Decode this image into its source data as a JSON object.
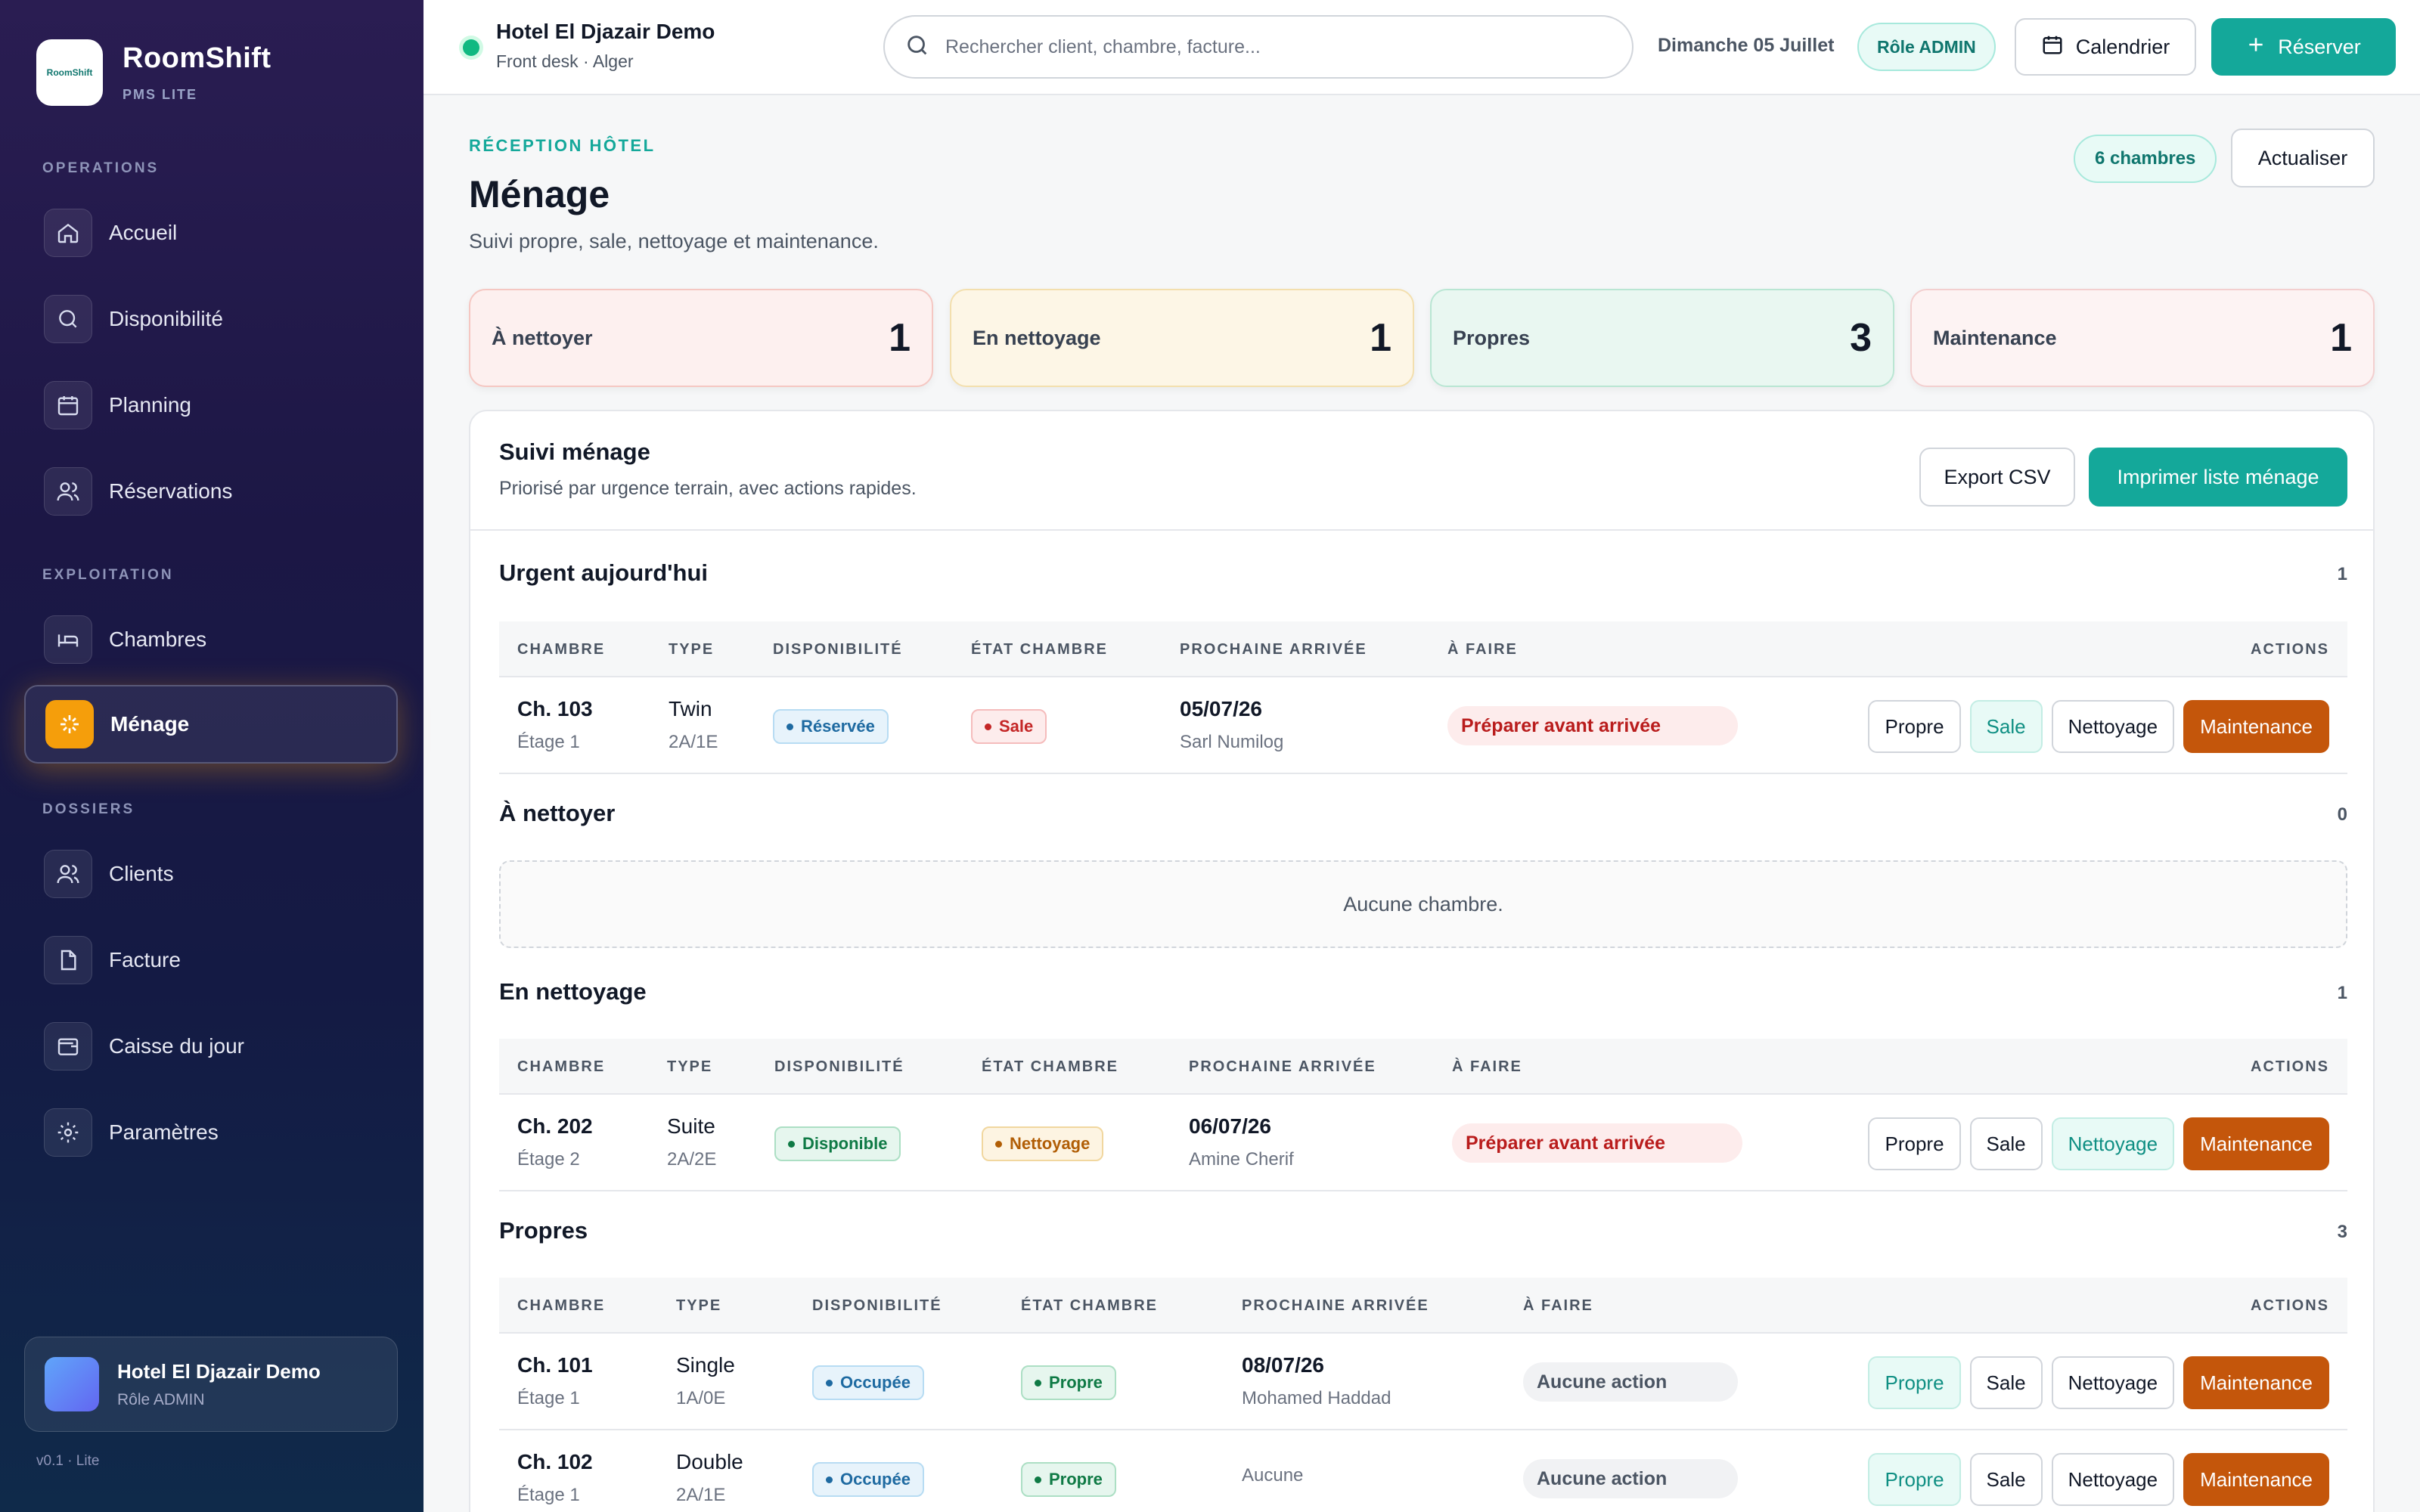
{
  "sidebar": {
    "brand": {
      "name": "RoomShift",
      "subtitle": "PMS LITE",
      "logo_text": "RoomShift"
    },
    "sections": {
      "operations": "OPERATIONS",
      "exploitation": "EXPLOITATION",
      "dossiers": "DOSSIERS"
    },
    "items": [
      {
        "label": "Accueil",
        "icon": "home-icon"
      },
      {
        "label": "Disponibilité",
        "icon": "search-icon"
      },
      {
        "label": "Planning",
        "icon": "calendar-icon"
      },
      {
        "label": "Réservations",
        "icon": "users-icon"
      },
      {
        "label": "Chambres",
        "icon": "bed-icon"
      },
      {
        "label": "Ménage",
        "icon": "sparkle-icon",
        "active": true
      },
      {
        "label": "Clients",
        "icon": "users-icon"
      },
      {
        "label": "Facture",
        "icon": "document-icon"
      },
      {
        "label": "Caisse du jour",
        "icon": "wallet-icon"
      },
      {
        "label": "Paramètres",
        "icon": "gear-icon"
      }
    ],
    "user": {
      "name": "Hotel El Djazair Demo",
      "role": "Rôle ADMIN"
    },
    "version": "v0.1 · Lite"
  },
  "topbar": {
    "hotel_name": "Hotel El Djazair Demo",
    "hotel_sub": "Front desk · Alger",
    "search_placeholder": "Rechercher client, chambre, facture...",
    "date": "Dimanche 05 Juillet",
    "role_badge": "Rôle ADMIN",
    "calendar_label": "Calendrier",
    "reserve_label": "Réserver"
  },
  "header": {
    "eyebrow": "RÉCEPTION HÔTEL",
    "title": "Ménage",
    "subtitle": "Suivi propre, sale, nettoyage et maintenance.",
    "rooms_badge": "6 chambres",
    "refresh_label": "Actualiser"
  },
  "stats": [
    {
      "label": "À nettoyer",
      "value": "1"
    },
    {
      "label": "En nettoyage",
      "value": "1"
    },
    {
      "label": "Propres",
      "value": "3"
    },
    {
      "label": "Maintenance",
      "value": "1"
    }
  ],
  "panel": {
    "title": "Suivi ménage",
    "subtitle": "Priorisé par urgence terrain, avec actions rapides.",
    "export_label": "Export CSV",
    "print_label": "Imprimer liste ménage"
  },
  "columns": {
    "room": "CHAMBRE",
    "type": "TYPE",
    "availability": "DISPONIBILITÉ",
    "state": "ÉTAT CHAMBRE",
    "next_arrival": "PROCHAINE ARRIVÉE",
    "todo": "À FAIRE",
    "actions": "ACTIONS"
  },
  "action_labels": {
    "clean": "Propre",
    "dirty": "Sale",
    "cleaning": "Nettoyage",
    "maintenance": "Maintenance"
  },
  "sections": {
    "urgent": {
      "title": "Urgent aujourd'hui",
      "count": "1",
      "rows": [
        {
          "room": "Ch. 103",
          "floor": "Étage 1",
          "type": "Twin",
          "capacity": "2A/1E",
          "availability": "Réservée",
          "state": "Sale",
          "arrival_date": "05/07/26",
          "arrival_name": "Sarl Numilog",
          "todo": "Préparer avant arrivée"
        }
      ]
    },
    "to_clean": {
      "title": "À nettoyer",
      "count": "0",
      "empty": "Aucune chambre."
    },
    "cleaning": {
      "title": "En nettoyage",
      "count": "1",
      "rows": [
        {
          "room": "Ch. 202",
          "floor": "Étage 2",
          "type": "Suite",
          "capacity": "2A/2E",
          "availability": "Disponible",
          "state": "Nettoyage",
          "arrival_date": "06/07/26",
          "arrival_name": "Amine Cherif",
          "todo": "Préparer avant arrivée"
        }
      ]
    },
    "clean": {
      "title": "Propres",
      "count": "3",
      "rows": [
        {
          "room": "Ch. 101",
          "floor": "Étage 1",
          "type": "Single",
          "capacity": "1A/0E",
          "availability": "Occupée",
          "state": "Propre",
          "arrival_date": "08/07/26",
          "arrival_name": "Mohamed Haddad",
          "todo": "Aucune action"
        },
        {
          "room": "Ch. 102",
          "floor": "Étage 1",
          "type": "Double",
          "capacity": "2A/1E",
          "availability": "Occupée",
          "state": "Propre",
          "arrival_date": "",
          "arrival_name": "Aucune",
          "todo": "Aucune action"
        }
      ]
    }
  },
  "colors": {
    "accent": "#14a89a",
    "active_nav": "#f59e0b",
    "maintenance": "#c4560b"
  }
}
